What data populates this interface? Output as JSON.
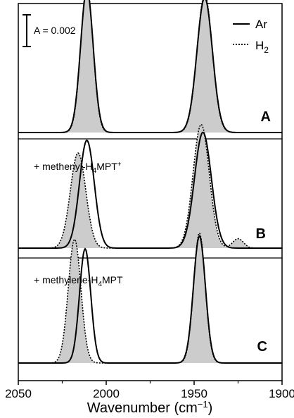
{
  "chart_data": {
    "type": "line",
    "xlabel": "Wavenumber (cm",
    "xlabel_sup": "−1",
    "xlabel_end": ")",
    "xlim": [
      2050,
      1900
    ],
    "x_ticks": [
      "2050",
      "2000",
      "1950",
      "1900"
    ],
    "x_tick_values": [
      2050,
      2000,
      1950,
      1900
    ],
    "scale_bar_label": "A = 0.002",
    "scale_bar_absorbance": 0.002,
    "legend": {
      "placement": "top-right",
      "entries": [
        {
          "label": "Ar",
          "style": "solid"
        },
        {
          "label": "H",
          "sub": "2",
          "style": "dotted",
          "fill": "#cccccc"
        }
      ]
    },
    "panels": [
      {
        "label": "A",
        "annotation": null,
        "series": [
          {
            "name": "Ar",
            "peaks": [
              {
                "center": 2011,
                "height": 0.009,
                "width": 3.6
              },
              {
                "center": 1944,
                "height": 0.0085,
                "width": 4.4
              }
            ]
          },
          {
            "name": "H2",
            "peaks": [
              {
                "center": 2011,
                "height": 0.0092,
                "width": 3.5
              },
              {
                "center": 1944,
                "height": 0.0087,
                "width": 4.3
              }
            ]
          }
        ]
      },
      {
        "label": "B",
        "annotation": {
          "pre": "+ methenyl-H",
          "sub": "4",
          "post": "MPT",
          "sup": "+"
        },
        "series": [
          {
            "name": "Ar",
            "peaks": [
              {
                "center": 2011,
                "height": 0.0068,
                "width": 4.2
              },
              {
                "center": 1945,
                "height": 0.0073,
                "width": 4.8
              }
            ]
          },
          {
            "name": "H2",
            "peaks": [
              {
                "center": 2016,
                "height": 0.006,
                "width": 4.4
              },
              {
                "center": 1946,
                "height": 0.0078,
                "width": 4.6
              },
              {
                "center": 1925,
                "height": 0.0006,
                "width": 3.0
              }
            ]
          }
        ]
      },
      {
        "label": "C",
        "annotation": {
          "pre": "+ methylene-H",
          "sub": "4",
          "post": "MPT",
          "sup": ""
        },
        "series": [
          {
            "name": "Ar",
            "peaks": [
              {
                "center": 2012,
                "height": 0.0072,
                "width": 3.2
              },
              {
                "center": 1947,
                "height": 0.008,
                "width": 3.4
              }
            ]
          },
          {
            "name": "H2",
            "peaks": [
              {
                "center": 2018,
                "height": 0.0078,
                "width": 3.6
              },
              {
                "center": 1947,
                "height": 0.0082,
                "width": 3.3
              }
            ]
          }
        ]
      }
    ]
  }
}
